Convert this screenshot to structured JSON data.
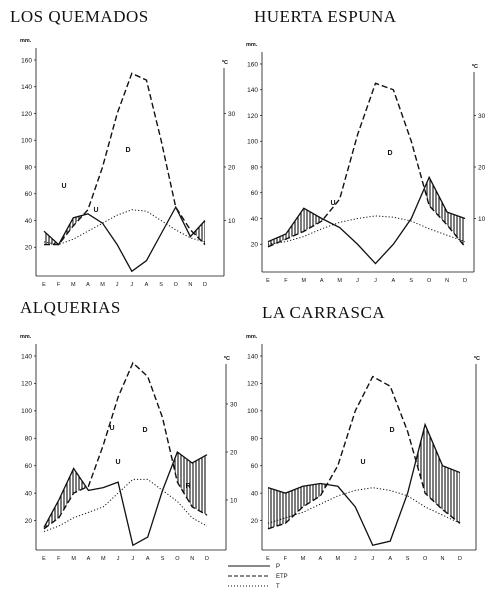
{
  "months": [
    "E",
    "F",
    "M",
    "A",
    "M",
    "J",
    "J",
    "A",
    "S",
    "O",
    "N",
    "D"
  ],
  "left_unit": "mm.",
  "right_unit": "ºC",
  "legend": [
    {
      "label": "P",
      "style": "solid"
    },
    {
      "label": "ETP",
      "style": "dashed"
    },
    {
      "label": "T",
      "style": "dotted"
    }
  ],
  "chart_data": [
    {
      "type": "line",
      "title": "LOS QUEMADOS",
      "x": [
        "E",
        "F",
        "M",
        "A",
        "M",
        "J",
        "J",
        "A",
        "S",
        "O",
        "N",
        "D"
      ],
      "ylim": [
        0,
        160
      ],
      "yticks": [
        20,
        40,
        60,
        80,
        100,
        120,
        140,
        160
      ],
      "y2lim": [
        0,
        40
      ],
      "y2ticks": [
        10,
        20,
        30
      ],
      "series": [
        {
          "name": "P",
          "values": [
            32,
            22,
            42,
            45,
            38,
            22,
            2,
            10,
            30,
            50,
            28,
            40
          ]
        },
        {
          "name": "ETP",
          "values": [
            22,
            22,
            36,
            48,
            80,
            120,
            150,
            145,
            100,
            50,
            33,
            22
          ]
        },
        {
          "name": "T",
          "values": [
            24,
            22,
            26,
            32,
            38,
            44,
            48,
            47,
            40,
            33,
            27,
            24
          ]
        }
      ],
      "annotations": [
        "U",
        "U",
        "D"
      ]
    },
    {
      "type": "line",
      "title": "HUERTA ESPUNA",
      "x": [
        "E",
        "F",
        "M",
        "A",
        "M",
        "J",
        "J",
        "A",
        "S",
        "O",
        "N",
        "D"
      ],
      "ylim": [
        0,
        160
      ],
      "yticks": [
        20,
        40,
        60,
        80,
        100,
        120,
        140,
        160
      ],
      "y2lim": [
        0,
        40
      ],
      "y2ticks": [
        10,
        20,
        30
      ],
      "series": [
        {
          "name": "P",
          "values": [
            22,
            28,
            48,
            40,
            33,
            20,
            5,
            20,
            40,
            72,
            45,
            40
          ]
        },
        {
          "name": "ETP",
          "values": [
            18,
            24,
            30,
            38,
            55,
            105,
            145,
            140,
            100,
            50,
            35,
            18
          ]
        },
        {
          "name": "T",
          "values": [
            20,
            22,
            26,
            32,
            37,
            40,
            42,
            41,
            38,
            32,
            27,
            22
          ]
        }
      ],
      "annotations": [
        "U",
        "D"
      ]
    },
    {
      "type": "line",
      "title": "ALQUERIAS",
      "x": [
        "E",
        "F",
        "M",
        "A",
        "M",
        "J",
        "J",
        "A",
        "S",
        "O",
        "N",
        "D"
      ],
      "ylim": [
        0,
        140
      ],
      "yticks": [
        20,
        40,
        60,
        80,
        100,
        120,
        140
      ],
      "y2lim": [
        0,
        40
      ],
      "y2ticks": [
        10,
        20,
        30
      ],
      "series": [
        {
          "name": "P",
          "values": [
            15,
            35,
            58,
            42,
            44,
            48,
            2,
            8,
            42,
            70,
            62,
            68
          ]
        },
        {
          "name": "ETP",
          "values": [
            14,
            22,
            40,
            45,
            75,
            110,
            135,
            125,
            95,
            48,
            30,
            24
          ]
        },
        {
          "name": "T",
          "values": [
            12,
            16,
            22,
            26,
            30,
            40,
            50,
            50,
            42,
            34,
            22,
            16
          ]
        }
      ],
      "annotations": [
        "U",
        "D",
        "R"
      ]
    },
    {
      "type": "line",
      "title": "LA CARRASCA",
      "x": [
        "E",
        "F",
        "M",
        "A",
        "M",
        "J",
        "J",
        "A",
        "S",
        "O",
        "N",
        "D"
      ],
      "ylim": [
        0,
        140
      ],
      "yticks": [
        20,
        40,
        60,
        80,
        100,
        120,
        140
      ],
      "y2lim": [
        0,
        40
      ],
      "y2ticks": [],
      "series": [
        {
          "name": "P",
          "values": [
            44,
            40,
            45,
            47,
            45,
            30,
            2,
            5,
            40,
            90,
            60,
            55
          ]
        },
        {
          "name": "ETP",
          "values": [
            14,
            18,
            30,
            38,
            60,
            100,
            125,
            118,
            85,
            40,
            28,
            18
          ]
        },
        {
          "name": "T",
          "values": [
            18,
            22,
            26,
            32,
            38,
            42,
            44,
            42,
            38,
            30,
            24,
            18
          ]
        }
      ],
      "annotations": [
        "U",
        "D"
      ]
    }
  ]
}
